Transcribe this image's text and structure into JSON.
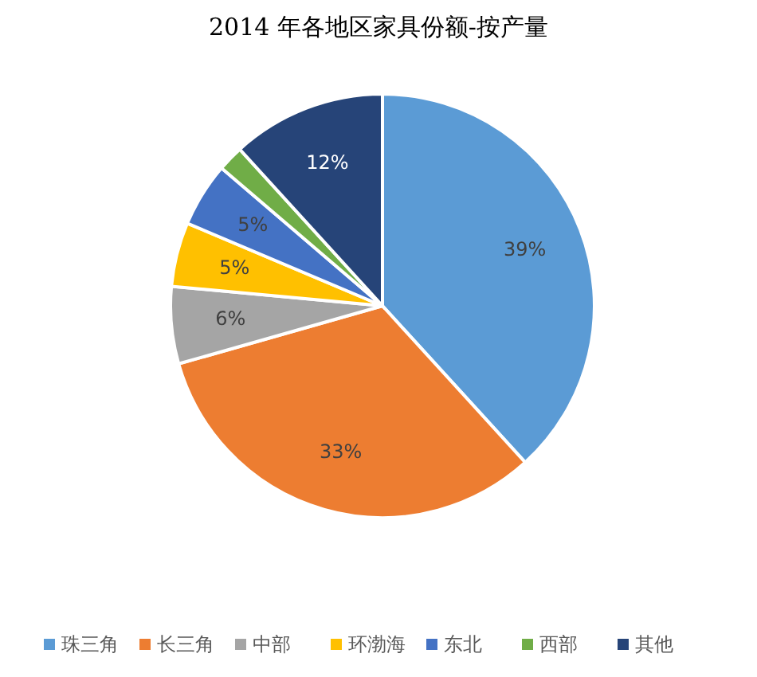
{
  "chart_data": {
    "type": "pie",
    "title": "2014 年各地区家具份额-按产量",
    "categories": [
      "珠三角",
      "长三角",
      "中部",
      "环渤海",
      "东北",
      "西部",
      "其他"
    ],
    "values": [
      39,
      33,
      6,
      5,
      5,
      2,
      12
    ],
    "value_labels": [
      "39%",
      "33%",
      "6%",
      "5%",
      "5%",
      null,
      "12%"
    ],
    "colors": [
      "#5b9bd5",
      "#ed7d31",
      "#a5a5a5",
      "#ffc000",
      "#4472c4",
      "#70ad47",
      "#264478"
    ],
    "legend": "bottom"
  }
}
